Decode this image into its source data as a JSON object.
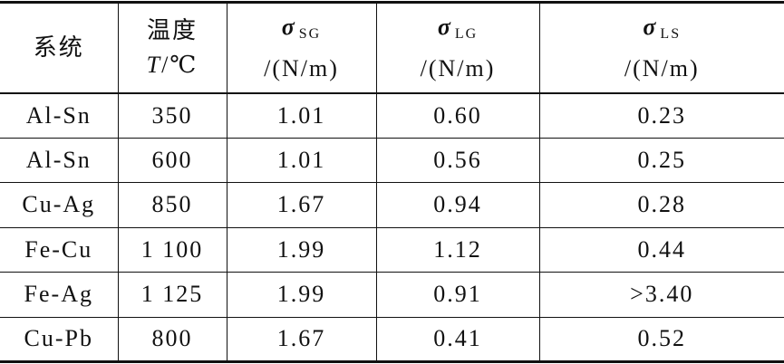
{
  "table": {
    "header": [
      {
        "label": "系统"
      },
      {
        "label": "温度",
        "symbol": "T",
        "unit": "/℃"
      },
      {
        "symbol": "σ",
        "sub": "SG",
        "unit": "/(N/m)"
      },
      {
        "symbol": "σ",
        "sub": "LG",
        "unit": "/(N/m)"
      },
      {
        "symbol": "σ",
        "sub": "LS",
        "unit": "/(N/m)"
      }
    ],
    "rows": [
      [
        "Al-Sn",
        "350",
        "1.01",
        "0.60",
        "0.23"
      ],
      [
        "Al-Sn",
        "600",
        "1.01",
        "0.56",
        "0.25"
      ],
      [
        "Cu-Ag",
        "850",
        "1.67",
        "0.94",
        "0.28"
      ],
      [
        "Fe-Cu",
        "1 100",
        "1.99",
        "1.12",
        "0.44"
      ],
      [
        "Fe-Ag",
        "1 125",
        "1.99",
        "0.91",
        ">3.40"
      ],
      [
        "Cu-Pb",
        "800",
        "1.67",
        "0.41",
        "0.52"
      ]
    ]
  }
}
